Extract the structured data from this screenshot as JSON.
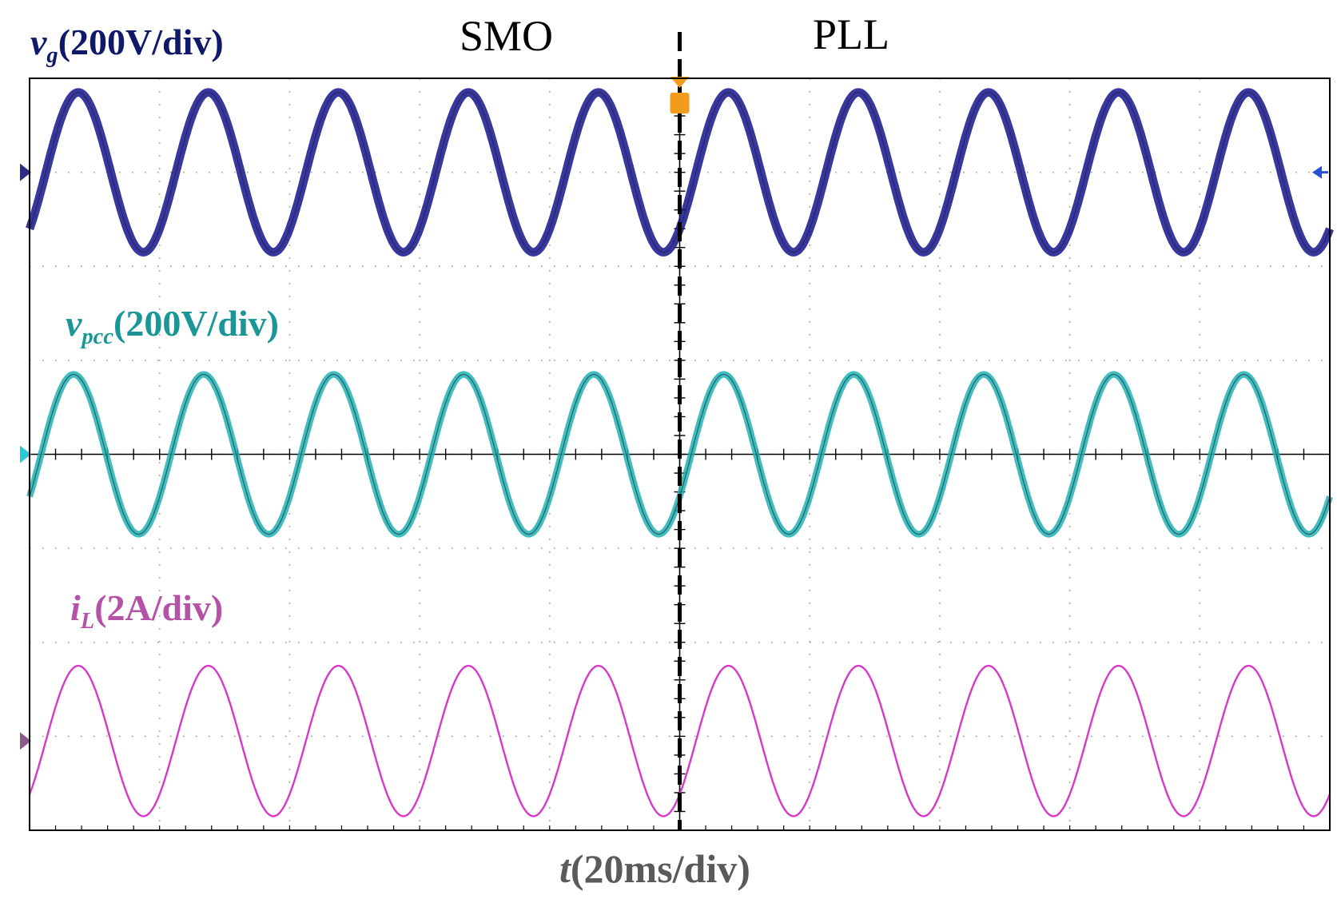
{
  "chart_data": {
    "type": "line",
    "title": "",
    "xlabel": {
      "var": "t",
      "scale": "(20ms/div)"
    },
    "divisions": {
      "x": 10,
      "y": 8
    },
    "x_range_ms": [
      0,
      200
    ],
    "switch": {
      "time_ms": 100,
      "before_label": "SMO",
      "after_label": "PLL"
    },
    "grid": true,
    "channel_markers": [
      {
        "name": "ch1",
        "color": "#2b2b8a"
      },
      {
        "name": "ch2",
        "color": "#2cc8d8"
      },
      {
        "name": "ch3",
        "color": "#8c5a8c"
      }
    ],
    "series": [
      {
        "name": "v_g",
        "var": "v",
        "sub": "g",
        "scale": "(200V/div)",
        "color": "#14148c",
        "label_color": "#10186a",
        "frequency_hz": 50,
        "offset_div": 3.0,
        "amplitude_div": 0.85,
        "phase_deg": -45,
        "band_div": 0.09
      },
      {
        "name": "v_pcc",
        "var": "v",
        "sub": "pcc",
        "scale": "(200V/div)",
        "color": "#1fb3b3",
        "label_color": "#1a9696",
        "frequency_hz": 50,
        "offset_div": 0.0,
        "amplitude_div": 0.85,
        "phase_deg": -32,
        "band_div": 0.07
      },
      {
        "name": "i_L",
        "var": "i",
        "sub": "L",
        "scale": "(2A/div)",
        "color": "#d838c6",
        "label_color": "#b552a8",
        "frequency_hz": 50,
        "offset_div": -3.05,
        "amplitude_div": 0.8,
        "phase_deg": -45,
        "band_div": 0.0
      }
    ]
  }
}
